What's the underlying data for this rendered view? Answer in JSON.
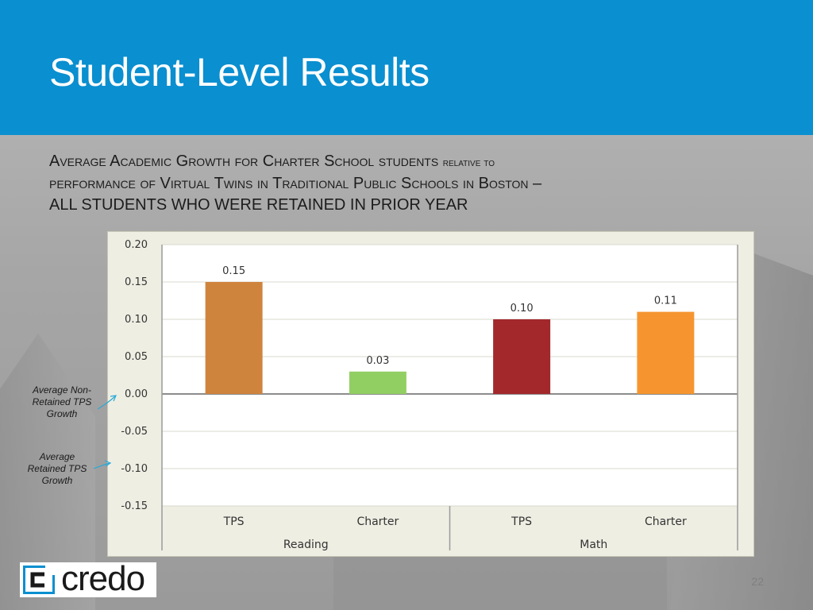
{
  "slide": {
    "title": "Student-Level Results",
    "subtitle": {
      "w1_cap": "A",
      "w1_rest": "verage",
      "w2_cap": "A",
      "w2_rest": "cademic",
      "w3_cap": "G",
      "w3_rest": "rowth for",
      "w4_cap": "C",
      "w4_rest": "harter",
      "w5_cap": "S",
      "w5_rest": "chool students",
      "w6": "relative to",
      "w7": "performance of",
      "w8_cap": "V",
      "w8_rest": "irtual",
      "w9_cap": "T",
      "w9_rest": "wins in",
      "w10_cap": "T",
      "w10_rest": "raditional",
      "w11_cap": "P",
      "w11_rest": "ublic",
      "w12_cap": "S",
      "w12_rest": "chools in",
      "w13_cap": "B",
      "w13_rest": "oston –",
      "line3": "ALL STUDENTS WHO WERE RETAINED IN PRIOR YEAR"
    },
    "annotations": {
      "non_retained": "Average Non-Retained TPS Growth",
      "retained": "Average Retained TPS Growth"
    },
    "logo": {
      "text": "credo",
      "color": "#0a8fd0"
    },
    "page_number": "22"
  },
  "chart_data": {
    "type": "bar",
    "title": "",
    "xlabel": "",
    "ylabel": "",
    "ylim": [
      -0.15,
      0.2
    ],
    "yticks": [
      "0.20",
      "0.15",
      "0.10",
      "0.05",
      "0.00",
      "-0.05",
      "-0.10",
      "-0.15"
    ],
    "yticks_values": [
      0.2,
      0.15,
      0.1,
      0.05,
      0.0,
      -0.05,
      -0.1,
      -0.15
    ],
    "grid": true,
    "groups": [
      "Reading",
      "Math"
    ],
    "categories": [
      "TPS",
      "Charter",
      "TPS",
      "Charter"
    ],
    "category_group": [
      0,
      0,
      1,
      1
    ],
    "values": [
      0.15,
      0.03,
      0.1,
      0.11
    ],
    "value_labels": [
      "0.15",
      "0.03",
      "0.10",
      "0.11"
    ],
    "colors": [
      "#cf843e",
      "#92cf63",
      "#a2282c",
      "#f6952f"
    ]
  }
}
